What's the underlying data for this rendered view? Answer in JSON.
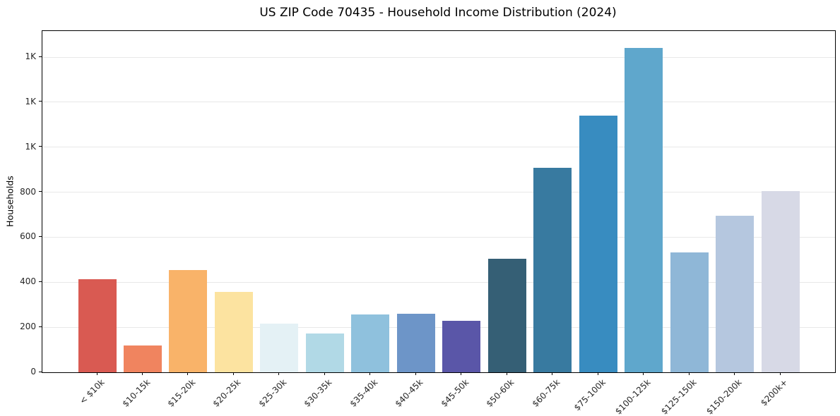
{
  "chart_data": {
    "type": "bar",
    "title": "US ZIP Code 70435 - Household Income Distribution (2024)",
    "xlabel": "",
    "ylabel": "Households",
    "categories": [
      "< $10k",
      "$10-15k",
      "$15-20k",
      "$20-25k",
      "$25-30k",
      "$30-35k",
      "$35-40k",
      "$40-45k",
      "$45-50k",
      "$50-60k",
      "$60-75k",
      "$75-100k",
      "$100-125k",
      "$125-150k",
      "$150-200k",
      "$200k+"
    ],
    "values": [
      415,
      120,
      453,
      357,
      215,
      172,
      257,
      260,
      230,
      504,
      907,
      1140,
      1440,
      533,
      695,
      805
    ],
    "bar_colors": [
      "#d95a52",
      "#f0845f",
      "#f9b369",
      "#fce3a0",
      "#e4f1f5",
      "#b1d9e6",
      "#8fc1dd",
      "#6d95c8",
      "#5a56a8",
      "#355f75",
      "#387aa0",
      "#388cc0",
      "#5fa7cc",
      "#8fb7d7",
      "#b5c7df",
      "#d7d9e6"
    ],
    "ylim": [
      0,
      1516
    ],
    "yticks": {
      "values": [
        0,
        200,
        400,
        600,
        800,
        1000,
        1200,
        1400
      ],
      "labels": [
        "0",
        "200",
        "400",
        "600",
        "800",
        "1K",
        "1K",
        "1K"
      ]
    },
    "grid": "horizontal",
    "legend": "none"
  },
  "style": {
    "grid_color": "#e8e8e8",
    "spine_color": "#000000",
    "tick_label_color": "#262626",
    "title_color": "#000000",
    "background": "#ffffff"
  }
}
